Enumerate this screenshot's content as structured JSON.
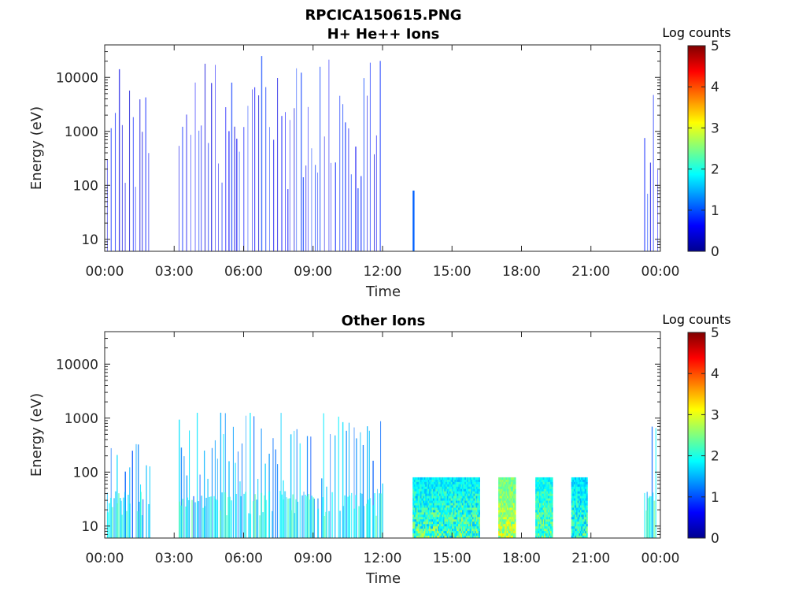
{
  "figure": {
    "title": "RPCICA150615.PNG"
  },
  "chart_data": [
    {
      "type": "heatmap",
      "title": "H+ He++ Ions",
      "xlabel": "Time",
      "ylabel": "Energy (eV)",
      "x_ticks": [
        "00:00",
        "03:00",
        "06:00",
        "09:00",
        "12:00",
        "15:00",
        "18:00",
        "21:00",
        "00:00"
      ],
      "xlim_hours": [
        0,
        24
      ],
      "y_scale": "log",
      "ylim": [
        6,
        40000
      ],
      "y_ticks": [
        10,
        100,
        1000,
        10000
      ],
      "y_tick_labels": [
        "10",
        "100",
        "1000",
        "10000"
      ],
      "colorbar": {
        "label": "Log counts",
        "ticks": [
          "0",
          "1",
          "2",
          "3",
          "4",
          "5"
        ],
        "range": [
          0,
          5
        ],
        "colormap": "jet"
      },
      "data_blocks": [
        {
          "start_hour": 0.1,
          "end_hour": 1.95,
          "emin": 6,
          "emax": 17000,
          "level": [
            0.4,
            1.2
          ],
          "pattern": "sparse-stripes"
        },
        {
          "start_hour": 3.2,
          "end_hour": 12.0,
          "emin": 6,
          "emax": 25000,
          "level": [
            0.4,
            1.3
          ],
          "pattern": "sparse-stripes"
        },
        {
          "start_hour": 13.3,
          "end_hour": 13.38,
          "emin": 6,
          "emax": 80,
          "level": [
            0.6,
            1.0
          ],
          "pattern": "single-spike"
        },
        {
          "start_hour": 23.3,
          "end_hour": 23.9,
          "emin": 6,
          "emax": 15000,
          "level": [
            0.4,
            1.2
          ],
          "pattern": "sparse-stripes"
        }
      ]
    },
    {
      "type": "heatmap",
      "title": "Other Ions",
      "xlabel": "Time",
      "ylabel": "Energy (eV)",
      "x_ticks": [
        "00:00",
        "03:00",
        "06:00",
        "09:00",
        "12:00",
        "15:00",
        "18:00",
        "21:00",
        "00:00"
      ],
      "xlim_hours": [
        0,
        24
      ],
      "y_scale": "log",
      "ylim": [
        6,
        40000
      ],
      "y_ticks": [
        10,
        100,
        1000,
        10000
      ],
      "y_tick_labels": [
        "10",
        "100",
        "1000",
        "10000"
      ],
      "colorbar": {
        "label": "Log counts",
        "ticks": [
          "0",
          "1",
          "2",
          "3",
          "4",
          "5"
        ],
        "range": [
          0,
          5
        ],
        "colormap": "jet"
      },
      "data_blocks": [
        {
          "start_hour": 0.1,
          "end_hour": 1.95,
          "emin": 6,
          "emax": 600,
          "level": [
            1.0,
            2.3
          ],
          "pattern": "stripes-with-band"
        },
        {
          "start_hour": 3.2,
          "end_hour": 12.0,
          "emin": 6,
          "emax": 1500,
          "level": [
            1.0,
            2.4
          ],
          "pattern": "stripes-with-band"
        },
        {
          "start_hour": 13.3,
          "end_hour": 16.2,
          "emin": 6,
          "emax": 80,
          "level": [
            1.0,
            3.0
          ],
          "pattern": "dense"
        },
        {
          "start_hour": 17.0,
          "end_hour": 17.75,
          "emin": 6,
          "emax": 80,
          "level": [
            1.8,
            3.4
          ],
          "pattern": "dense"
        },
        {
          "start_hour": 18.6,
          "end_hour": 19.35,
          "emin": 6,
          "emax": 80,
          "level": [
            1.2,
            3.0
          ],
          "pattern": "dense"
        },
        {
          "start_hour": 20.15,
          "end_hour": 20.85,
          "emin": 6,
          "emax": 80,
          "level": [
            1.0,
            2.8
          ],
          "pattern": "dense"
        },
        {
          "start_hour": 23.3,
          "end_hour": 23.9,
          "emin": 6,
          "emax": 1500,
          "level": [
            1.0,
            2.6
          ],
          "pattern": "stripes-with-band"
        }
      ]
    }
  ]
}
